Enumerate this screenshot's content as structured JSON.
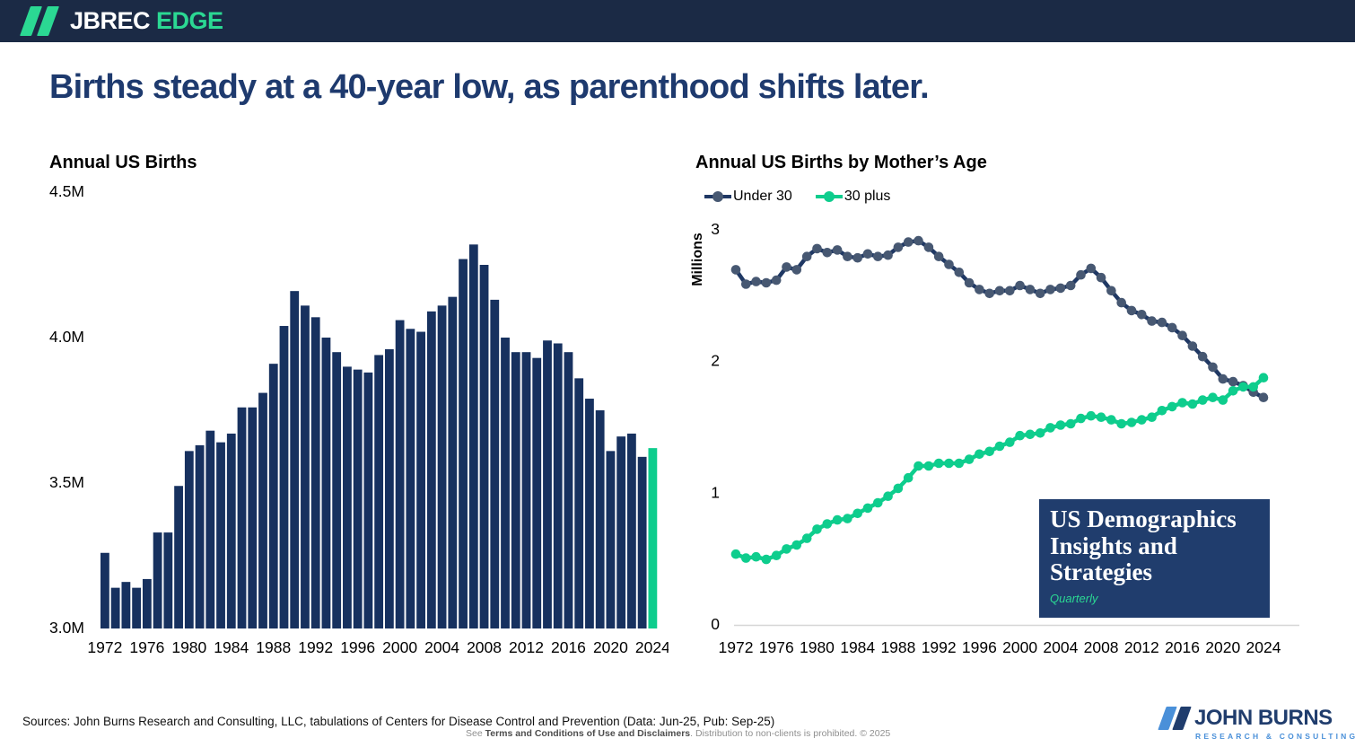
{
  "header": {
    "brand_primary": "JBREC",
    "brand_secondary": "EDGE"
  },
  "title": "Births steady at a 40-year low, as parenthood shifts later.",
  "colors": {
    "header_bg": "#1b2a45",
    "title_navy": "#1e3a6e",
    "bar_navy": "#17315f",
    "accent_green": "#0ecd8d",
    "under30_line": "#1f3864",
    "under30_marker": "#475872",
    "axis_gray": "#d6d6d6",
    "logo_lightblue": "#4a90d9",
    "box_navy": "#203d6d"
  },
  "chart_data": [
    {
      "type": "bar",
      "title": "Annual US Births",
      "categories": [
        1972,
        1973,
        1974,
        1975,
        1976,
        1977,
        1978,
        1979,
        1980,
        1981,
        1982,
        1983,
        1984,
        1985,
        1986,
        1987,
        1988,
        1989,
        1990,
        1991,
        1992,
        1993,
        1994,
        1995,
        1996,
        1997,
        1998,
        1999,
        2000,
        2001,
        2002,
        2003,
        2004,
        2005,
        2006,
        2007,
        2008,
        2009,
        2010,
        2011,
        2012,
        2013,
        2014,
        2015,
        2016,
        2017,
        2018,
        2019,
        2020,
        2021,
        2022,
        2023,
        2024
      ],
      "values": [
        3.26,
        3.14,
        3.16,
        3.14,
        3.17,
        3.33,
        3.33,
        3.49,
        3.61,
        3.63,
        3.68,
        3.64,
        3.67,
        3.76,
        3.76,
        3.81,
        3.91,
        4.04,
        4.16,
        4.11,
        4.07,
        4.0,
        3.95,
        3.9,
        3.89,
        3.88,
        3.94,
        3.96,
        4.06,
        4.03,
        4.02,
        4.09,
        4.11,
        4.14,
        4.27,
        4.32,
        4.25,
        4.13,
        4.0,
        3.95,
        3.95,
        3.93,
        3.99,
        3.98,
        3.95,
        3.86,
        3.79,
        3.75,
        3.61,
        3.66,
        3.67,
        3.59,
        3.62
      ],
      "units": "millions of births",
      "ylim": [
        3.0,
        4.5
      ],
      "ytick_values": [
        3.0,
        3.5,
        4.0,
        4.5
      ],
      "ytick_labels": [
        "3.0M",
        "3.5M",
        "4.0M",
        "4.5M"
      ],
      "x_tick_labels": [
        "1972",
        "1976",
        "1980",
        "1984",
        "1988",
        "1992",
        "1996",
        "2000",
        "2004",
        "2008",
        "2012",
        "2016",
        "2020",
        "2024"
      ],
      "bar_color": "#17315f",
      "highlight_index": 52,
      "highlight_color": "#0ecd8d",
      "grid": false,
      "legend_position": "none"
    },
    {
      "type": "line",
      "title": "Annual US Births by Mother’s Age",
      "ylabel": "Millions",
      "x": [
        1972,
        1973,
        1974,
        1975,
        1976,
        1977,
        1978,
        1979,
        1980,
        1981,
        1982,
        1983,
        1984,
        1985,
        1986,
        1987,
        1988,
        1989,
        1990,
        1991,
        1992,
        1993,
        1994,
        1995,
        1996,
        1997,
        1998,
        1999,
        2000,
        2001,
        2002,
        2003,
        2004,
        2005,
        2006,
        2007,
        2008,
        2009,
        2010,
        2011,
        2012,
        2013,
        2014,
        2015,
        2016,
        2017,
        2018,
        2019,
        2020,
        2021,
        2022,
        2023,
        2024
      ],
      "series": [
        {
          "name": "Under 30",
          "color": "#1f3864",
          "marker_color": "#475872",
          "values": [
            2.69,
            2.58,
            2.6,
            2.59,
            2.61,
            2.71,
            2.69,
            2.79,
            2.85,
            2.82,
            2.84,
            2.79,
            2.78,
            2.81,
            2.79,
            2.8,
            2.86,
            2.9,
            2.91,
            2.86,
            2.79,
            2.73,
            2.67,
            2.59,
            2.54,
            2.51,
            2.53,
            2.53,
            2.57,
            2.54,
            2.51,
            2.54,
            2.55,
            2.57,
            2.65,
            2.7,
            2.63,
            2.53,
            2.44,
            2.38,
            2.35,
            2.3,
            2.29,
            2.25,
            2.19,
            2.11,
            2.03,
            1.95,
            1.86,
            1.84,
            1.81,
            1.76,
            1.72
          ]
        },
        {
          "name": "30 plus",
          "color": "#0ecd8d",
          "marker_color": "#0ecd8d",
          "values": [
            0.53,
            0.5,
            0.51,
            0.49,
            0.52,
            0.57,
            0.6,
            0.65,
            0.72,
            0.76,
            0.79,
            0.8,
            0.84,
            0.88,
            0.92,
            0.97,
            1.03,
            1.11,
            1.2,
            1.2,
            1.22,
            1.22,
            1.22,
            1.25,
            1.29,
            1.31,
            1.35,
            1.38,
            1.43,
            1.44,
            1.45,
            1.49,
            1.51,
            1.52,
            1.56,
            1.58,
            1.57,
            1.55,
            1.52,
            1.53,
            1.55,
            1.57,
            1.62,
            1.65,
            1.68,
            1.67,
            1.7,
            1.72,
            1.7,
            1.77,
            1.8,
            1.8,
            1.87
          ]
        }
      ],
      "ylim": [
        0,
        3
      ],
      "ytick_values": [
        0,
        1,
        2,
        3
      ],
      "ytick_labels": [
        "0",
        "1",
        "2",
        "3"
      ],
      "x_tick_labels": [
        "1972",
        "1976",
        "1980",
        "1984",
        "1988",
        "1992",
        "1996",
        "2000",
        "2004",
        "2008",
        "2012",
        "2016",
        "2020",
        "2024"
      ],
      "grid": false,
      "legend_position": "top-left"
    }
  ],
  "demographics_box": {
    "line1": "US Demographics",
    "line2": "Insights and",
    "line3": "Strategies",
    "tag": "Quarterly"
  },
  "footer": {
    "sources": "Sources: John Burns Research and Consulting, LLC, tabulations of Centers for Disease Control and Prevention (Data: Jun-25, Pub: Sep-25)",
    "disclaimer_prefix": "See ",
    "disclaimer_bold": "Terms and Conditions of Use and Disclaimers",
    "disclaimer_suffix": ". Distribution to non-clients is prohibited. © 2025"
  },
  "jb_logo": {
    "name": "JOHN BURNS",
    "tagline": "RESEARCH & CONSULTING"
  }
}
